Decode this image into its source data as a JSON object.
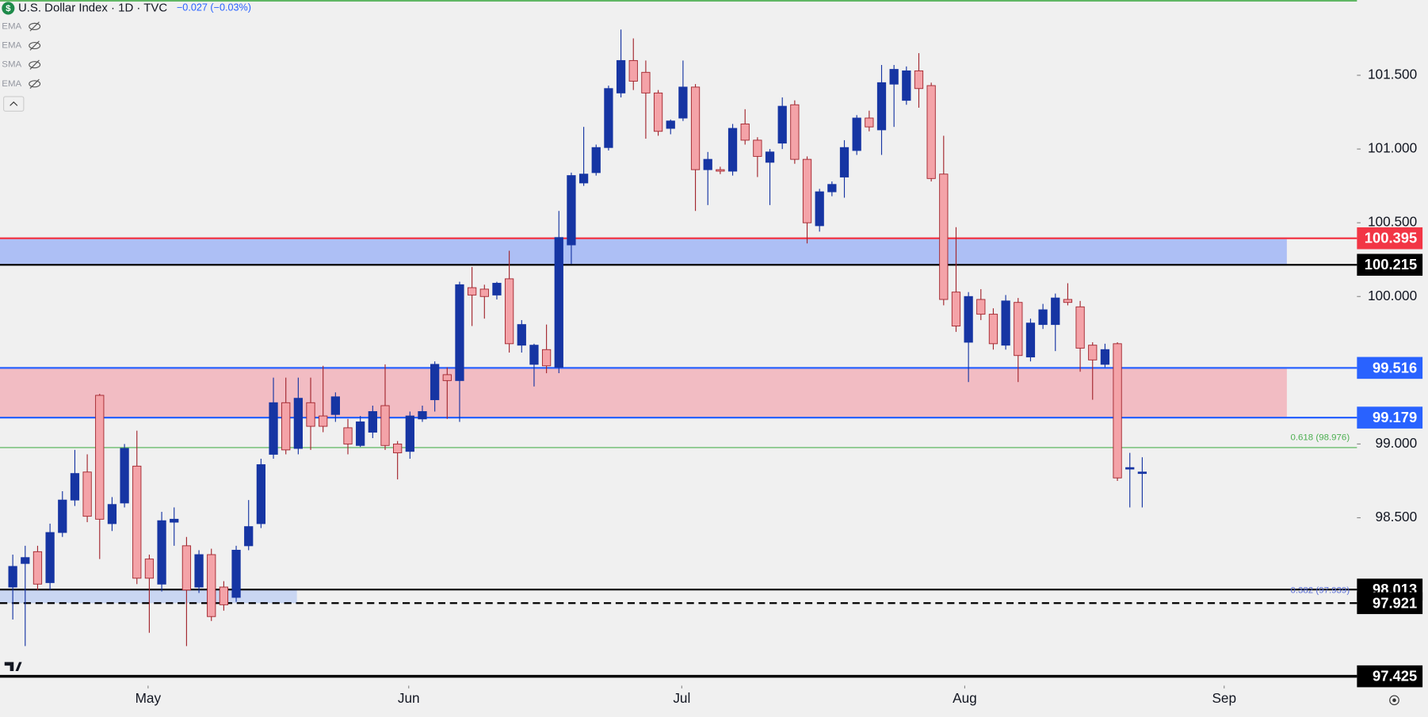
{
  "chart_data": {
    "type": "candlestick",
    "title": "U.S. Dollar Index · 1D · TVC",
    "change": "−0.027 (−0.03%)",
    "indicators": [
      "EMA",
      "EMA",
      "SMA",
      "EMA"
    ],
    "up_color": "#1635a3",
    "down_color": "#f4a3a8",
    "down_edge": "#a3262e",
    "open": [
      98.03,
      98.19,
      98.27,
      98.06,
      98.4,
      98.62,
      98.81,
      99.33,
      98.46,
      98.6,
      98.85,
      98.22,
      98.05,
      98.47,
      98.31,
      98.03,
      98.25,
      98.03,
      97.96,
      98.31,
      98.46,
      98.93,
      99.28,
      98.97,
      99.28,
      99.19,
      99.2,
      99.11,
      98.99,
      99.08,
      99.26,
      99.0,
      98.95,
      99.17,
      99.3,
      99.47,
      99.43,
      100.06,
      100.05,
      100.01,
      100.12,
      99.67,
      99.54,
      99.64,
      99.52,
      100.35,
      100.77,
      100.84,
      101.01,
      101.38,
      101.6,
      101.52,
      101.38,
      101.14,
      101.21,
      101.42,
      100.86,
      100.86,
      100.85,
      101.17,
      101.06,
      100.91,
      101.04,
      101.3,
      100.93,
      100.48,
      100.71,
      100.81,
      100.99,
      101.21,
      101.13,
      101.44,
      101.33,
      101.53,
      101.43,
      100.83,
      100.03,
      99.69,
      99.98,
      99.88,
      99.67,
      99.96,
      99.59,
      99.81,
      99.81,
      99.98,
      99.93,
      99.67,
      99.54,
      99.68,
      98.83,
      98.8
    ],
    "high": [
      98.25,
      98.31,
      98.31,
      98.46,
      98.68,
      98.96,
      98.93,
      99.34,
      98.64,
      99.0,
      99.09,
      98.25,
      98.54,
      98.57,
      98.37,
      98.28,
      98.29,
      98.07,
      98.31,
      98.62,
      98.9,
      99.45,
      99.45,
      99.45,
      99.45,
      99.53,
      99.35,
      99.17,
      99.19,
      99.26,
      99.54,
      99.02,
      99.22,
      99.26,
      99.56,
      99.52,
      100.1,
      100.2,
      100.08,
      100.1,
      100.31,
      99.84,
      99.68,
      99.81,
      100.58,
      100.84,
      101.15,
      101.03,
      101.43,
      101.81,
      101.75,
      101.6,
      101.4,
      101.2,
      101.6,
      101.44,
      100.98,
      100.88,
      101.17,
      101.27,
      101.08,
      101.0,
      101.35,
      101.33,
      100.95,
      100.73,
      100.78,
      101.06,
      101.23,
      101.26,
      101.57,
      101.57,
      101.56,
      101.65,
      101.45,
      101.09,
      100.47,
      100.03,
      100.05,
      99.92,
      100.01,
      99.99,
      99.85,
      99.95,
      100.02,
      100.09,
      99.97,
      99.69,
      99.68,
      99.69,
      98.94,
      98.91
    ],
    "low": [
      97.81,
      97.63,
      98.01,
      98.01,
      98.37,
      98.58,
      98.47,
      98.22,
      98.41,
      98.57,
      98.05,
      97.72,
      98.0,
      98.31,
      97.63,
      97.99,
      97.8,
      97.87,
      97.93,
      98.28,
      98.43,
      98.9,
      98.93,
      98.93,
      98.96,
      99.08,
      99.15,
      98.93,
      98.98,
      99.04,
      98.96,
      98.76,
      98.9,
      99.15,
      99.22,
      99.17,
      99.15,
      99.8,
      99.85,
      99.98,
      99.62,
      99.62,
      99.39,
      99.48,
      99.48,
      100.22,
      100.75,
      100.82,
      100.99,
      101.35,
      101.4,
      101.07,
      101.09,
      101.1,
      101.19,
      100.58,
      100.62,
      100.83,
      100.82,
      101.03,
      100.81,
      100.62,
      101.0,
      100.9,
      100.36,
      100.44,
      100.68,
      100.67,
      100.96,
      101.12,
      100.96,
      101.15,
      101.3,
      101.28,
      100.78,
      99.94,
      99.76,
      99.42,
      99.84,
      99.64,
      99.64,
      99.42,
      99.56,
      99.78,
      99.63,
      99.94,
      99.49,
      99.3,
      99.52,
      98.75,
      98.57,
      98.57
    ],
    "close": [
      98.17,
      98.23,
      98.05,
      98.4,
      98.62,
      98.8,
      98.51,
      98.49,
      98.59,
      98.97,
      98.09,
      98.09,
      98.48,
      98.49,
      98.01,
      98.25,
      97.83,
      97.91,
      98.28,
      98.44,
      98.86,
      99.28,
      98.96,
      99.31,
      99.12,
      99.12,
      99.32,
      99.0,
      99.15,
      99.22,
      98.99,
      98.94,
      99.19,
      99.22,
      99.54,
      99.43,
      100.08,
      100.01,
      100.0,
      100.09,
      99.68,
      99.81,
      99.67,
      99.53,
      100.4,
      100.82,
      100.83,
      101.01,
      101.41,
      101.6,
      101.46,
      101.38,
      101.12,
      101.19,
      101.42,
      100.86,
      100.93,
      100.85,
      101.14,
      101.06,
      100.95,
      100.98,
      101.29,
      100.93,
      100.5,
      100.71,
      100.76,
      101.01,
      101.21,
      101.15,
      101.45,
      101.54,
      101.53,
      101.41,
      100.8,
      99.98,
      99.8,
      100.0,
      99.88,
      99.68,
      99.97,
      99.6,
      99.82,
      99.91,
      99.99,
      99.96,
      99.65,
      99.57,
      99.64,
      98.77,
      98.84,
      98.81
    ],
    "xlim": [
      -1.03,
      108.3
    ],
    "xticks": [
      {
        "value": 10.9,
        "label": "May"
      },
      {
        "value": 31.9,
        "label": "Jun"
      },
      {
        "value": 53.9,
        "label": "Jul"
      },
      {
        "value": 76.7,
        "label": "Aug"
      },
      {
        "value": 97.6,
        "label": "Sep"
      }
    ],
    "ylim": [
      97.38,
      102.01
    ],
    "yticks": [
      {
        "value": 98.5,
        "label": "98.500"
      },
      {
        "value": 99,
        "label": "99.000"
      },
      {
        "value": 100,
        "label": "100.000"
      },
      {
        "value": 100.5,
        "label": "100.500"
      },
      {
        "value": 101,
        "label": "101.000"
      },
      {
        "value": 101.5,
        "label": "101.500"
      }
    ],
    "levels": [
      {
        "value": 100.395,
        "color": "#f23645"
      },
      {
        "value": 100.215,
        "color": "#000000"
      },
      {
        "value": 99.516,
        "color": "#2962ff"
      },
      {
        "value": 99.179,
        "color": "#2962ff"
      },
      {
        "value": 98.013,
        "color": "#000000"
      },
      {
        "value": 97.921,
        "color": "#000000",
        "dashed": true
      },
      {
        "value": 97.425,
        "color": "#000000"
      }
    ],
    "fib": [
      {
        "value": 98.976,
        "label": "0.618 (98.976)",
        "color": "#4caf50"
      },
      {
        "value": 97.939,
        "label": "0.382 (97.939)",
        "color": "#5b6fd6"
      }
    ],
    "zones": [
      {
        "low": 100.215,
        "high": 100.395,
        "color": "#adbff5"
      },
      {
        "low": 99.179,
        "high": 99.516,
        "color": "#f2bcc3"
      },
      {
        "low": 97.921,
        "high": 98.013,
        "color": "#c9d6f2"
      }
    ]
  }
}
